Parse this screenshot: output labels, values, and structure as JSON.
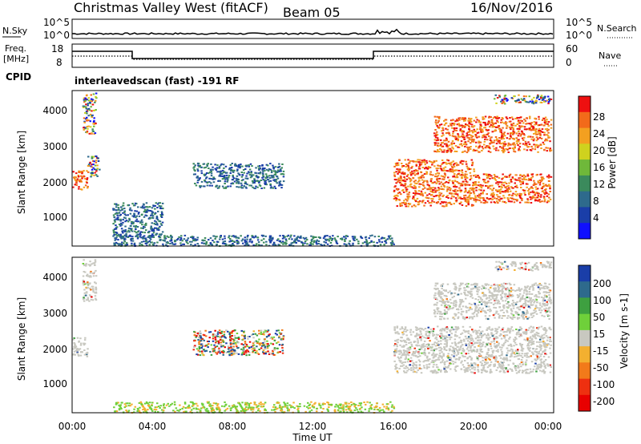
{
  "header": {
    "station": "Christmas Valley West (fitACF)",
    "beam": "Beam 05",
    "date": "16/Nov/2016"
  },
  "noise_panel": {
    "left_label": "N.Sky",
    "left_ticks": [
      "10^5",
      "10^0"
    ],
    "right_ticks": [
      "10^5",
      "10^0"
    ],
    "right_label": "N.Search"
  },
  "freq_panel": {
    "label_line1": "Freq.",
    "label_line2": "[MHz]",
    "left_ticks": [
      "18",
      "8"
    ],
    "right_ticks": [
      "60",
      "0"
    ],
    "right_label": "Nave",
    "cpid_label": "CPID",
    "cpid_text": "interleavedscan (fast) -191 RF"
  },
  "chart_data": [
    {
      "type": "heatmap",
      "name": "power",
      "ylabel": "Slant Range [km]",
      "ylim": [
        180,
        4500
      ],
      "yticks": [
        "1000",
        "2000",
        "3000",
        "4000"
      ],
      "colorbar_label": "Power [dB]",
      "colorbar_ticks": [
        "28",
        "24",
        "20",
        "16",
        "12",
        "8",
        "4"
      ],
      "colors": [
        "#1010ff",
        "#1a3ea8",
        "#2e6a8c",
        "#3b8a5c",
        "#6fb83a",
        "#cfd21e",
        "#f3a020",
        "#f26a1a",
        "#ee1010"
      ],
      "echo_regions": [
        {
          "x0": "00:00",
          "x1": "00:45",
          "y0": 1750,
          "y1": 2300,
          "level": "high"
        },
        {
          "x0": "00:45",
          "x1": "01:20",
          "y0": 2100,
          "y1": 2700,
          "level": "mixed"
        },
        {
          "x0": "00:30",
          "x1": "01:10",
          "y0": 3300,
          "y1": 4450,
          "level": "mixed"
        },
        {
          "x0": "02:00",
          "x1": "04:30",
          "y0": 400,
          "y1": 1400,
          "level": "low"
        },
        {
          "x0": "06:00",
          "x1": "10:30",
          "y0": 1800,
          "y1": 2500,
          "level": "low"
        },
        {
          "x0": "02:00",
          "x1": "16:00",
          "y0": 200,
          "y1": 500,
          "level": "low"
        },
        {
          "x0": "16:00",
          "x1": "20:00",
          "y0": 1300,
          "y1": 2600,
          "level": "high"
        },
        {
          "x0": "20:00",
          "x1": "23:50",
          "y0": 1400,
          "y1": 2200,
          "level": "high"
        },
        {
          "x0": "18:00",
          "x1": "23:50",
          "y0": 2800,
          "y1": 3800,
          "level": "high"
        },
        {
          "x0": "21:00",
          "x1": "23:50",
          "y0": 4150,
          "y1": 4400,
          "level": "mixed"
        }
      ]
    },
    {
      "type": "heatmap",
      "name": "velocity",
      "ylabel": "Slant Range [km]",
      "ylim": [
        180,
        4500
      ],
      "yticks": [
        "1000",
        "2000",
        "3000",
        "4000"
      ],
      "colorbar_label": "Velocity [m s-1]",
      "colorbar_ticks": [
        "200",
        "100",
        "50",
        "15",
        "-15",
        "-50",
        "-100",
        "-200"
      ],
      "colors": [
        "#1a3ea8",
        "#2e6a8c",
        "#3ea040",
        "#6fd03a",
        "#c8c8c0",
        "#f3b030",
        "#f27a1a",
        "#ee3010",
        "#e80000"
      ],
      "echo_regions": [
        {
          "x0": "00:00",
          "x1": "00:45",
          "y0": 1750,
          "y1": 2300,
          "level": "ground"
        },
        {
          "x0": "00:30",
          "x1": "01:10",
          "y0": 3300,
          "y1": 4450,
          "level": "ground"
        },
        {
          "x0": "06:00",
          "x1": "10:30",
          "y0": 1800,
          "y1": 2500,
          "level": "mixed"
        },
        {
          "x0": "02:00",
          "x1": "16:00",
          "y0": 200,
          "y1": 500,
          "level": "green"
        },
        {
          "x0": "16:00",
          "x1": "23:50",
          "y0": 1300,
          "y1": 2600,
          "level": "ground"
        },
        {
          "x0": "18:00",
          "x1": "23:50",
          "y0": 2800,
          "y1": 3800,
          "level": "ground"
        },
        {
          "x0": "21:00",
          "x1": "23:50",
          "y0": 4150,
          "y1": 4400,
          "level": "ground"
        }
      ]
    }
  ],
  "x_axis": {
    "ticks": [
      "00:00",
      "04:00",
      "08:00",
      "12:00",
      "16:00",
      "20:00",
      "00:00"
    ],
    "label": "Time UT"
  }
}
